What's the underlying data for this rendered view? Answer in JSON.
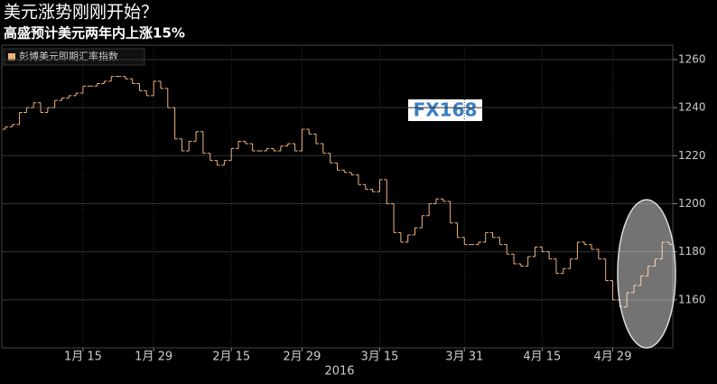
{
  "chart_data": {
    "type": "ohlc",
    "title": "美元涨势刚刚开始？",
    "subtitle": "高盛预计美元两年内上涨15%",
    "watermark": "FX168",
    "x_label": "2016",
    "legend_position": "upper left",
    "grid": true,
    "ylim": [
      1140,
      1266
    ],
    "yticks": [
      1160,
      1180,
      1200,
      1220,
      1240,
      1260
    ],
    "categories": [
      null,
      null,
      null,
      null,
      null,
      null,
      null,
      null,
      null,
      null,
      null,
      "1月 15",
      null,
      null,
      null,
      null,
      null,
      null,
      null,
      null,
      null,
      "1月 29",
      null,
      null,
      null,
      null,
      null,
      null,
      null,
      null,
      null,
      null,
      "2月 15",
      null,
      null,
      null,
      null,
      null,
      null,
      null,
      null,
      null,
      "2月 29",
      null,
      null,
      null,
      null,
      null,
      null,
      null,
      null,
      null,
      null,
      "3月 15",
      null,
      null,
      null,
      null,
      null,
      null,
      null,
      null,
      null,
      null,
      null,
      "3月 31",
      null,
      null,
      null,
      null,
      null,
      null,
      null,
      null,
      null,
      null,
      "4月 15",
      null,
      null,
      null,
      null,
      null,
      null,
      null,
      null,
      null,
      "4月 29",
      null,
      null,
      null,
      null,
      null,
      null,
      null,
      null
    ],
    "series": [
      {
        "name": "彭博美元即期汇率指数",
        "color": "#f0b27a",
        "open": [
          1231,
          1232,
          1233,
          1238,
          1240,
          1242,
          1238,
          1240,
          1243,
          1244,
          1245,
          1246,
          1249,
          1249,
          1250,
          1251,
          1253,
          1253,
          1252,
          1250,
          1247,
          1245,
          1251,
          1248,
          1240,
          1227,
          1222,
          1226,
          1230,
          1221,
          1218,
          1216,
          1218,
          1223,
          1226,
          1225,
          1222,
          1222,
          1223,
          1222,
          1224,
          1225,
          1222,
          1231,
          1229,
          1225,
          1221,
          1217,
          1214,
          1213,
          1212,
          1208,
          1206,
          1205,
          1210,
          1200,
          1188,
          1184,
          1187,
          1190,
          1195,
          1200,
          1202,
          1201,
          1192,
          1186,
          1183,
          1183,
          1184,
          1188,
          1186,
          1183,
          1179,
          1175,
          1174,
          1178,
          1182,
          1180,
          1177,
          1171,
          1173,
          1177,
          1184,
          1183,
          1181,
          1177,
          1168,
          1160,
          1157,
          1163,
          1166,
          1170,
          1174,
          1177,
          1184
        ],
        "close": [
          1232,
          1233,
          1238,
          1240,
          1242,
          1238,
          1240,
          1243,
          1244,
          1245,
          1246,
          1249,
          1249,
          1250,
          1251,
          1253,
          1253,
          1252,
          1250,
          1247,
          1245,
          1251,
          1248,
          1240,
          1227,
          1222,
          1226,
          1230,
          1221,
          1218,
          1216,
          1218,
          1223,
          1226,
          1225,
          1222,
          1222,
          1223,
          1222,
          1224,
          1225,
          1222,
          1231,
          1229,
          1225,
          1221,
          1217,
          1214,
          1213,
          1212,
          1208,
          1206,
          1205,
          1210,
          1200,
          1188,
          1184,
          1187,
          1190,
          1195,
          1200,
          1202,
          1201,
          1192,
          1186,
          1183,
          1183,
          1184,
          1188,
          1186,
          1183,
          1179,
          1175,
          1174,
          1178,
          1182,
          1180,
          1177,
          1171,
          1173,
          1177,
          1184,
          1183,
          1181,
          1177,
          1168,
          1160,
          1157,
          1163,
          1166,
          1170,
          1174,
          1177,
          1184,
          1183
        ]
      }
    ]
  }
}
